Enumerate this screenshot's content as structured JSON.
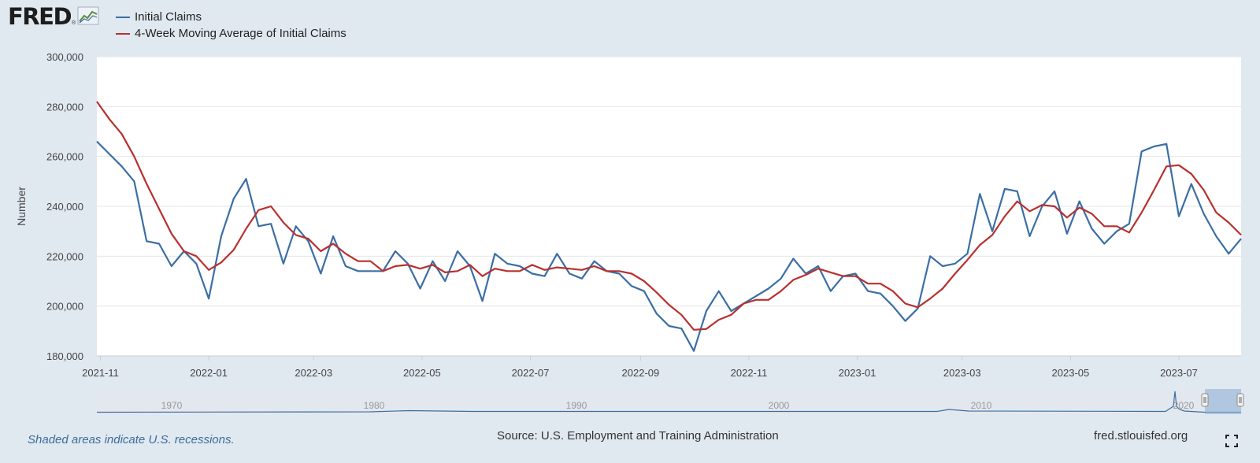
{
  "header": {
    "logo": "FRED",
    "legend": [
      {
        "label": "Initial Claims",
        "color": "#3b6ea5"
      },
      {
        "label": "4-Week Moving Average of Initial Claims",
        "color": "#b8302e"
      }
    ]
  },
  "footer": {
    "recession_note": "Shaded areas indicate U.S. recessions.",
    "source": "Source: U.S. Employment and Training Administration",
    "url": "fred.stlouisfed.org"
  },
  "navigator": {
    "decade_labels": [
      "1970",
      "1980",
      "1990",
      "2000",
      "2010",
      "2020"
    ]
  },
  "chart_data": {
    "type": "line",
    "title": "",
    "xlabel": "",
    "ylabel": "Number",
    "ylim": [
      180000,
      300000
    ],
    "grid": true,
    "legend_position": "top-left",
    "x_start": "2021-10-30",
    "x_end": "2023-08-05",
    "x_ticks": [
      "2021-11",
      "2022-01",
      "2022-03",
      "2022-05",
      "2022-07",
      "2022-09",
      "2022-11",
      "2023-01",
      "2023-03",
      "2023-05",
      "2023-07"
    ],
    "y_ticks": [
      "180,000",
      "200,000",
      "220,000",
      "240,000",
      "260,000",
      "280,000",
      "300,000"
    ],
    "x_dates": [
      "2021-10-30",
      "2021-11-06",
      "2021-11-13",
      "2021-11-20",
      "2021-11-27",
      "2021-12-04",
      "2021-12-11",
      "2021-12-18",
      "2021-12-25",
      "2022-01-01",
      "2022-01-08",
      "2022-01-15",
      "2022-01-22",
      "2022-01-29",
      "2022-02-05",
      "2022-02-12",
      "2022-02-19",
      "2022-02-26",
      "2022-03-05",
      "2022-03-12",
      "2022-03-19",
      "2022-03-26",
      "2022-04-02",
      "2022-04-09",
      "2022-04-16",
      "2022-04-23",
      "2022-04-30",
      "2022-05-07",
      "2022-05-14",
      "2022-05-21",
      "2022-05-28",
      "2022-06-04",
      "2022-06-11",
      "2022-06-18",
      "2022-06-25",
      "2022-07-02",
      "2022-07-09",
      "2022-07-16",
      "2022-07-23",
      "2022-07-30",
      "2022-08-06",
      "2022-08-13",
      "2022-08-20",
      "2022-08-27",
      "2022-09-03",
      "2022-09-10",
      "2022-09-17",
      "2022-09-24",
      "2022-10-01",
      "2022-10-08",
      "2022-10-15",
      "2022-10-22",
      "2022-10-29",
      "2022-11-05",
      "2022-11-12",
      "2022-11-19",
      "2022-11-26",
      "2022-12-03",
      "2022-12-10",
      "2022-12-17",
      "2022-12-24",
      "2022-12-31",
      "2023-01-07",
      "2023-01-14",
      "2023-01-21",
      "2023-01-28",
      "2023-02-04",
      "2023-02-11",
      "2023-02-18",
      "2023-02-25",
      "2023-03-04",
      "2023-03-11",
      "2023-03-18",
      "2023-03-25",
      "2023-04-01",
      "2023-04-08",
      "2023-04-15",
      "2023-04-22",
      "2023-04-29",
      "2023-05-06",
      "2023-05-13",
      "2023-05-20",
      "2023-05-27",
      "2023-06-03",
      "2023-06-10",
      "2023-06-17",
      "2023-06-24",
      "2023-07-01",
      "2023-07-08",
      "2023-07-15",
      "2023-07-22",
      "2023-07-29",
      "2023-08-05"
    ],
    "series": [
      {
        "name": "Initial Claims",
        "color": "#3b6ea5",
        "values": [
          266000,
          261000,
          256000,
          250000,
          226000,
          225000,
          216000,
          222000,
          217000,
          203000,
          228000,
          243000,
          251000,
          232000,
          233000,
          217000,
          232000,
          226000,
          213000,
          228000,
          216000,
          214000,
          214000,
          214000,
          222000,
          217000,
          207000,
          218000,
          210000,
          222000,
          216000,
          202000,
          221000,
          217000,
          216000,
          213000,
          212000,
          221000,
          213000,
          211000,
          218000,
          214000,
          213000,
          208000,
          206000,
          197000,
          192000,
          191000,
          182000,
          198000,
          206000,
          198000,
          201000,
          204000,
          207000,
          211000,
          219000,
          213000,
          216000,
          206000,
          212000,
          213000,
          206000,
          205000,
          200000,
          194000,
          199000,
          220000,
          216000,
          217000,
          221000,
          245000,
          230000,
          247000,
          246000,
          228000,
          240000,
          246000,
          229000,
          242000,
          231000,
          225000,
          230000,
          233000,
          262000,
          264000,
          265000,
          236000,
          249000,
          237000,
          228000,
          221000,
          227000
        ]
      },
      {
        "name": "4-Week Moving Average of Initial Claims",
        "color": "#b8302e",
        "values": [
          282000,
          275000,
          269000,
          260000,
          249000,
          239000,
          229000,
          222000,
          220000,
          214500,
          217500,
          222500,
          231000,
          238500,
          240000,
          233500,
          228500,
          227000,
          222000,
          225000,
          221000,
          218000,
          218000,
          214000,
          216000,
          216500,
          215000,
          216500,
          213500,
          214000,
          216500,
          212000,
          215000,
          214000,
          214000,
          216500,
          214500,
          215500,
          215000,
          214500,
          216000,
          214000,
          214000,
          213000,
          210000,
          205500,
          200500,
          196500,
          190500,
          190800,
          194500,
          196500,
          201000,
          202500,
          202500,
          206000,
          210500,
          212500,
          215000,
          213500,
          212000,
          212000,
          209000,
          209000,
          206000,
          201000,
          199500,
          203000,
          207000,
          213000,
          218500,
          224500,
          228500,
          236000,
          242000,
          238000,
          240500,
          240000,
          235500,
          239500,
          237000,
          232000,
          232000,
          229500,
          237500,
          246500,
          256000,
          256500,
          253000,
          246500,
          237500,
          233500,
          228500
        ]
      }
    ]
  }
}
